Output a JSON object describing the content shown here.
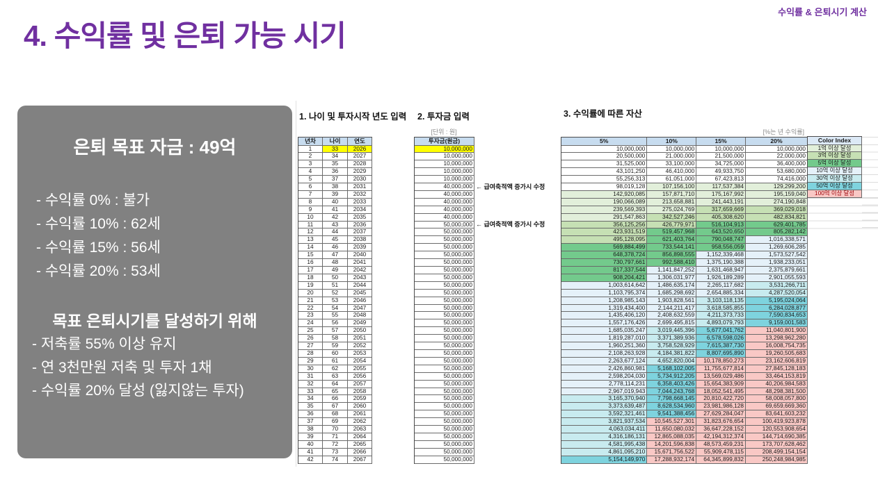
{
  "slide": {
    "title": "4. 수익률 및 은퇴 가능 시기",
    "corner_label": "수익률 & 은퇴시기 계산",
    "accent_color": "#7030A0"
  },
  "summary_box": {
    "bg_color": "#818181",
    "heading1": "은퇴 목표 자금 : 49억",
    "goal_lines": [
      "- 수익률   0% : 불가",
      "- 수익률 10% : 62세",
      "- 수익률 15% : 56세",
      "- 수익률 20% : 53세"
    ],
    "heading2": "목표 은퇴시기를 달성하기 위해",
    "strategy_lines": [
      "- 저축률 55% 이상 유지",
      "- 연 3천만원 저축 및 투자 1채",
      "- 수익률 20% 달성 (잃지않는 투자)"
    ]
  },
  "sections": {
    "s1_title": "1. 나이 및 투자시작 년도 입력",
    "s2_title": "2. 투자금 입력",
    "s3_title": "3. 수익률에 따른 자산",
    "unit_note": "[단위 : 원]",
    "rate_note": "[%는 년 수익률]"
  },
  "table1": {
    "headers": [
      "년차",
      "나이",
      "연도"
    ]
  },
  "table2": {
    "header": "투자금(원금)"
  },
  "table3": {
    "headers": [
      "5%",
      "10%",
      "15%",
      "20%"
    ]
  },
  "annotations": [
    {
      "row": 6,
      "text": "← 급여축적액 증가시 수정"
    },
    {
      "row": 11,
      "text": "← 급여축적액 증가시 수정"
    }
  ],
  "color_index": {
    "header": "Color Index",
    "entries": [
      {
        "label": "1억 이상 달성",
        "min": 100000000,
        "color": "#E2EFDA",
        "text": "#1a1a1a"
      },
      {
        "label": "3억 이상 달성",
        "min": 300000000,
        "color": "#C6E0B4",
        "text": "#1a1a1a"
      },
      {
        "label": "5억 이상 달성",
        "min": 500000000,
        "color": "#73CA8C",
        "text": "#1a1a1a"
      },
      {
        "label": "10억 이상 달성",
        "min": 1000000000,
        "color": "#E5F1F9",
        "text": "#1a1a1a"
      },
      {
        "label": "30억 이상 달성",
        "min": 3000000000,
        "color": "#C8EBEF",
        "text": "#1a1a1a"
      },
      {
        "label": "50억 이상 달성",
        "min": 5000000000,
        "color": "#7ED3DE",
        "text": "#1a1a1a"
      },
      {
        "label": "100억 이상 달성",
        "min": 10000000000,
        "color": "#F9C8C5",
        "text": "#9C0006"
      }
    ]
  },
  "highlight_color": "#FFFF00",
  "row_fields": [
    "year_index",
    "age",
    "year",
    "investment",
    "assets_by_rate"
  ],
  "rows": [
    {
      "n": 1,
      "age": 33,
      "year": 2026,
      "invest": "10,000,000",
      "hl": true,
      "assets": [
        "10,000,000",
        "10,000,000",
        "10,000,000",
        "10,000,000"
      ]
    },
    {
      "n": 2,
      "age": 34,
      "year": 2027,
      "invest": "10,000,000",
      "assets": [
        "20,500,000",
        "21,000,000",
        "21,500,000",
        "22,000,000"
      ]
    },
    {
      "n": 3,
      "age": 35,
      "year": 2028,
      "invest": "10,000,000",
      "assets": [
        "31,525,000",
        "33,100,000",
        "34,725,000",
        "36,400,000"
      ]
    },
    {
      "n": 4,
      "age": 36,
      "year": 2029,
      "invest": "10,000,000",
      "assets": [
        "43,101,250",
        "46,410,000",
        "49,933,750",
        "53,680,000"
      ]
    },
    {
      "n": 5,
      "age": 37,
      "year": 2030,
      "invest": "10,000,000",
      "assets": [
        "55,256,313",
        "61,051,000",
        "67,423,813",
        "74,416,000"
      ]
    },
    {
      "n": 6,
      "age": 38,
      "year": 2031,
      "invest": "40,000,000",
      "assets": [
        "98,019,128",
        "107,156,100",
        "117,537,384",
        "129,299,200"
      ]
    },
    {
      "n": 7,
      "age": 39,
      "year": 2032,
      "invest": "40,000,000",
      "assets": [
        "142,920,085",
        "157,871,710",
        "175,167,992",
        "195,159,040"
      ]
    },
    {
      "n": 8,
      "age": 40,
      "year": 2033,
      "invest": "40,000,000",
      "assets": [
        "190,066,089",
        "213,658,881",
        "241,443,191",
        "274,190,848"
      ]
    },
    {
      "n": 9,
      "age": 41,
      "year": 2034,
      "invest": "40,000,000",
      "assets": [
        "239,569,393",
        "275,024,769",
        "317,659,669",
        "369,029,018"
      ]
    },
    {
      "n": 10,
      "age": 42,
      "year": 2035,
      "invest": "40,000,000",
      "assets": [
        "291,547,863",
        "342,527,246",
        "405,308,620",
        "482,834,821"
      ]
    },
    {
      "n": 11,
      "age": 43,
      "year": 2036,
      "invest": "50,000,000",
      "assets": [
        "356,125,256",
        "426,779,971",
        "516,104,913",
        "629,401,785"
      ]
    },
    {
      "n": 12,
      "age": 44,
      "year": 2037,
      "invest": "50,000,000",
      "assets": [
        "423,931,519",
        "519,457,968",
        "643,520,650",
        "805,282,142"
      ]
    },
    {
      "n": 13,
      "age": 45,
      "year": 2038,
      "invest": "50,000,000",
      "assets": [
        "495,128,095",
        "621,403,764",
        "790,048,747",
        "1,016,338,571"
      ]
    },
    {
      "n": 14,
      "age": 46,
      "year": 2039,
      "invest": "50,000,000",
      "assets": [
        "569,884,499",
        "733,544,141",
        "958,556,059",
        "1,269,606,285"
      ]
    },
    {
      "n": 15,
      "age": 47,
      "year": 2040,
      "invest": "50,000,000",
      "assets": [
        "648,378,724",
        "856,898,555",
        "1,152,339,468",
        "1,573,527,542"
      ]
    },
    {
      "n": 16,
      "age": 48,
      "year": 2041,
      "invest": "50,000,000",
      "assets": [
        "730,797,661",
        "992,588,410",
        "1,375,190,388",
        "1,938,233,051"
      ]
    },
    {
      "n": 17,
      "age": 49,
      "year": 2042,
      "invest": "50,000,000",
      "assets": [
        "817,337,544",
        "1,141,847,252",
        "1,631,468,947",
        "2,375,879,661"
      ]
    },
    {
      "n": 18,
      "age": 50,
      "year": 2043,
      "invest": "50,000,000",
      "assets": [
        "908,204,421",
        "1,306,031,977",
        "1,926,189,289",
        "2,901,055,593"
      ]
    },
    {
      "n": 19,
      "age": 51,
      "year": 2044,
      "invest": "50,000,000",
      "assets": [
        "1,003,614,642",
        "1,486,635,174",
        "2,265,117,682",
        "3,531,266,711"
      ]
    },
    {
      "n": 20,
      "age": 52,
      "year": 2045,
      "invest": "50,000,000",
      "assets": [
        "1,103,795,374",
        "1,685,298,692",
        "2,654,885,334",
        "4,287,520,054"
      ]
    },
    {
      "n": 21,
      "age": 53,
      "year": 2046,
      "invest": "50,000,000",
      "assets": [
        "1,208,985,143",
        "1,903,828,561",
        "3,103,118,135",
        "5,195,024,064"
      ]
    },
    {
      "n": 22,
      "age": 54,
      "year": 2047,
      "invest": "50,000,000",
      "assets": [
        "1,319,434,400",
        "2,144,211,417",
        "3,618,585,855",
        "6,284,028,877"
      ]
    },
    {
      "n": 23,
      "age": 55,
      "year": 2048,
      "invest": "50,000,000",
      "assets": [
        "1,435,406,120",
        "2,408,632,559",
        "4,211,373,733",
        "7,590,834,653"
      ]
    },
    {
      "n": 24,
      "age": 56,
      "year": 2049,
      "invest": "50,000,000",
      "assets": [
        "1,557,176,426",
        "2,699,495,815",
        "4,893,079,793",
        "9,159,001,583"
      ]
    },
    {
      "n": 25,
      "age": 57,
      "year": 2050,
      "invest": "50,000,000",
      "assets": [
        "1,685,035,247",
        "3,019,445,396",
        "5,677,041,762",
        "11,040,801,900"
      ]
    },
    {
      "n": 26,
      "age": 58,
      "year": 2051,
      "invest": "50,000,000",
      "assets": [
        "1,819,287,010",
        "3,371,389,936",
        "6,578,598,026",
        "13,298,962,280"
      ]
    },
    {
      "n": 27,
      "age": 59,
      "year": 2052,
      "invest": "50,000,000",
      "assets": [
        "1,960,251,360",
        "3,758,528,929",
        "7,615,387,730",
        "16,008,754,735"
      ]
    },
    {
      "n": 28,
      "age": 60,
      "year": 2053,
      "invest": "50,000,000",
      "assets": [
        "2,108,263,928",
        "4,184,381,822",
        "8,807,695,890",
        "19,260,505,683"
      ]
    },
    {
      "n": 29,
      "age": 61,
      "year": 2054,
      "invest": "50,000,000",
      "assets": [
        "2,263,677,124",
        "4,652,820,004",
        "10,178,850,273",
        "23,162,606,819"
      ]
    },
    {
      "n": 30,
      "age": 62,
      "year": 2055,
      "invest": "50,000,000",
      "assets": [
        "2,426,860,981",
        "5,168,102,005",
        "11,755,677,814",
        "27,845,128,183"
      ]
    },
    {
      "n": 31,
      "age": 63,
      "year": 2056,
      "invest": "50,000,000",
      "assets": [
        "2,598,204,030",
        "5,734,912,205",
        "13,569,029,486",
        "33,464,153,819"
      ]
    },
    {
      "n": 32,
      "age": 64,
      "year": 2057,
      "invest": "50,000,000",
      "assets": [
        "2,778,114,231",
        "6,358,403,426",
        "15,654,383,909",
        "40,206,984,583"
      ]
    },
    {
      "n": 33,
      "age": 65,
      "year": 2058,
      "invest": "50,000,000",
      "assets": [
        "2,967,019,943",
        "7,044,243,768",
        "18,052,541,495",
        "48,298,381,500"
      ]
    },
    {
      "n": 34,
      "age": 66,
      "year": 2059,
      "invest": "50,000,000",
      "assets": [
        "3,165,370,940",
        "7,798,668,145",
        "20,810,422,720",
        "58,008,057,800"
      ]
    },
    {
      "n": 35,
      "age": 67,
      "year": 2060,
      "invest": "50,000,000",
      "assets": [
        "3,373,639,487",
        "8,628,534,960",
        "23,981,986,128",
        "69,659,669,360"
      ]
    },
    {
      "n": 36,
      "age": 68,
      "year": 2061,
      "invest": "50,000,000",
      "assets": [
        "3,592,321,461",
        "9,541,388,456",
        "27,629,284,047",
        "83,641,603,232"
      ]
    },
    {
      "n": 37,
      "age": 69,
      "year": 2062,
      "invest": "50,000,000",
      "assets": [
        "3,821,937,534",
        "10,545,527,301",
        "31,823,676,654",
        "100,419,923,878"
      ]
    },
    {
      "n": 38,
      "age": 70,
      "year": 2063,
      "invest": "50,000,000",
      "assets": [
        "4,063,034,411",
        "11,650,080,032",
        "36,647,228,152",
        "120,553,908,654"
      ]
    },
    {
      "n": 39,
      "age": 71,
      "year": 2064,
      "invest": "50,000,000",
      "assets": [
        "4,316,186,131",
        "12,865,088,035",
        "42,194,312,374",
        "144,714,690,385"
      ]
    },
    {
      "n": 40,
      "age": 72,
      "year": 2065,
      "invest": "50,000,000",
      "assets": [
        "4,581,995,438",
        "14,201,596,838",
        "48,573,459,231",
        "173,707,628,462"
      ]
    },
    {
      "n": 41,
      "age": 73,
      "year": 2066,
      "invest": "50,000,000",
      "assets": [
        "4,861,095,210",
        "15,671,756,522",
        "55,909,478,115",
        "208,499,154,154"
      ]
    },
    {
      "n": 42,
      "age": 74,
      "year": 2067,
      "invest": "50,000,000",
      "assets": [
        "5,154,149,970",
        "17,288,932,174",
        "64,345,899,832",
        "250,248,984,985"
      ]
    }
  ]
}
